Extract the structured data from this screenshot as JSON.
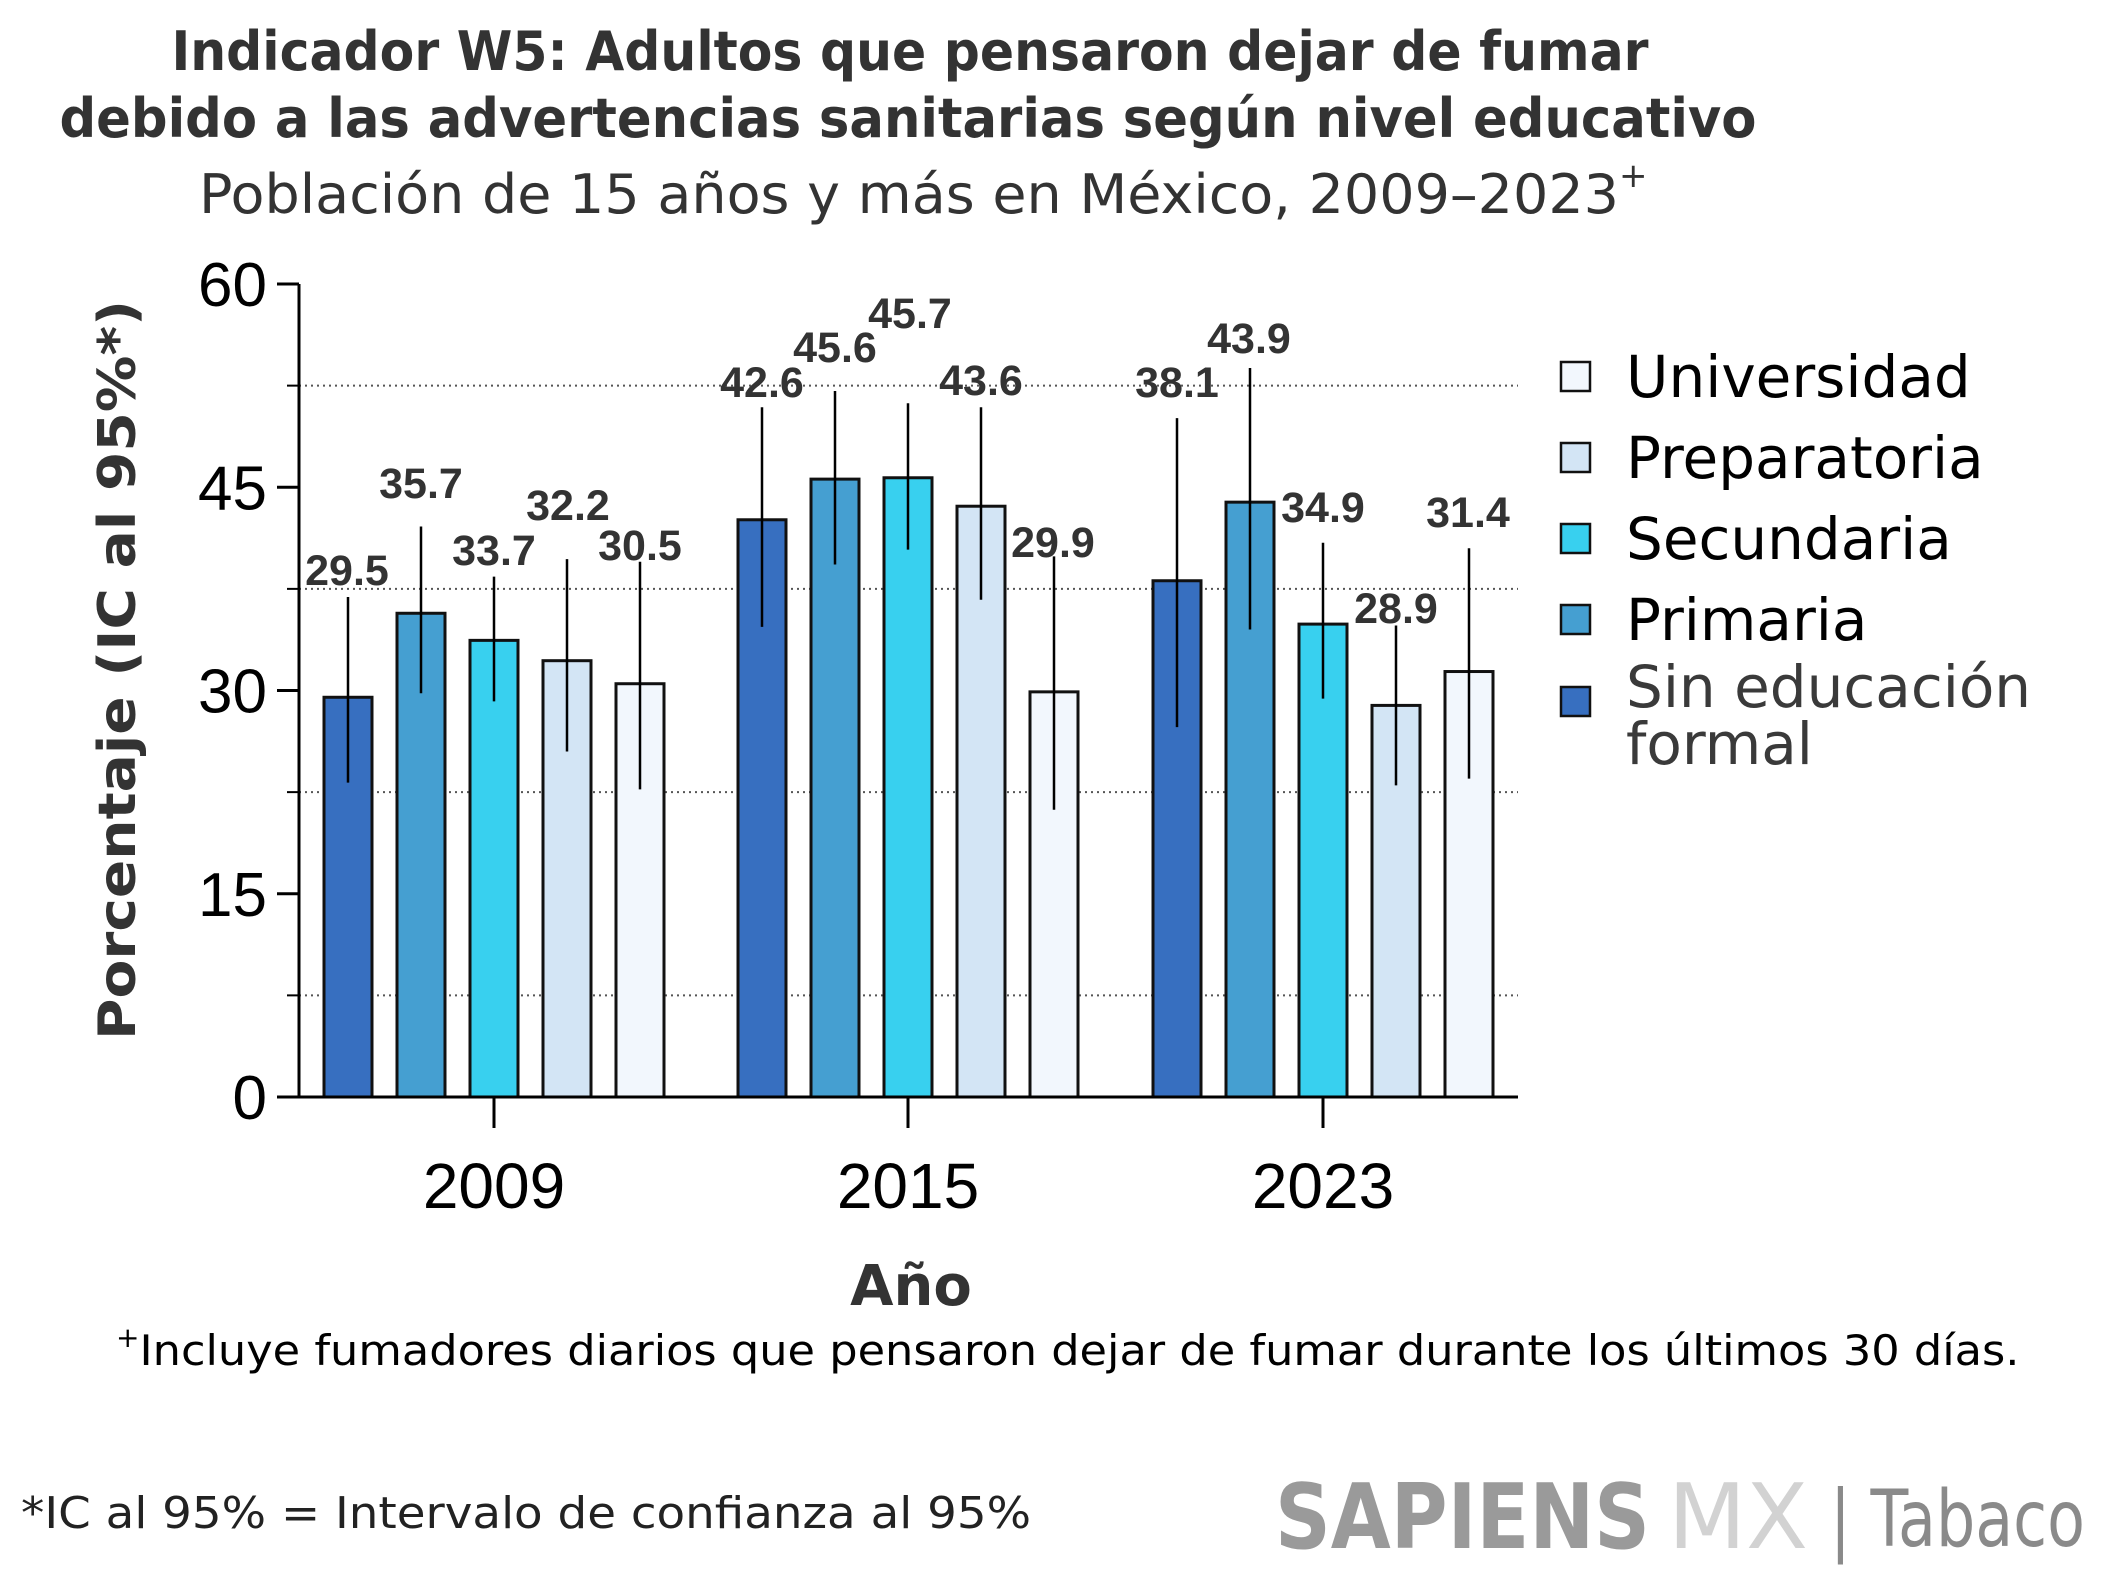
{
  "title_line1": "Indicador W5: Adultos que pensaron dejar de fumar",
  "title_line2": "debido a las advertencias sanitarias según nivel educativo",
  "subtitle": "Población de 15 años y más en México, 2009–2023",
  "subtitle_sup": "+",
  "footnote_sup": "+",
  "footnote": "Incluye fumadores diarios que pensaron dejar de fumar durante los últimos 30 días.",
  "ci_note": "*IC al 95% = Intervalo de confianza al 95%",
  "logo": {
    "part1": "SAPIENS",
    "part2": "MX",
    "part3": "| Tabaco"
  },
  "chart_data": {
    "type": "bar",
    "title": "Indicador W5: Adultos que pensaron dejar de fumar debido a las advertencias sanitarias según nivel educativo",
    "subtitle": "Población de 15 años y más en México, 2009–2023+",
    "xlabel": "Año",
    "ylabel": "Porcentaje (IC al 95%*)",
    "ylim": [
      0,
      60
    ],
    "yticks": [
      0,
      15,
      30,
      45,
      60
    ],
    "ytick_labels": [
      "0",
      "15",
      "30",
      "45",
      "60"
    ],
    "minor_gridlines": [
      7.5,
      22.5,
      37.5,
      52.5
    ],
    "grid": "dotted minor horizontal",
    "categories": [
      "2009",
      "2015",
      "2023"
    ],
    "legend_position": "right",
    "legend_order": [
      "Universidad",
      "Preparatoria",
      "Secundaria",
      "Primaria",
      "Sin educación formal"
    ],
    "series": [
      {
        "name": "Sin educación formal",
        "color": "#376fc0",
        "values": [
          29.5,
          42.6,
          38.1
        ],
        "ci_low": [
          23.2,
          34.7,
          27.3
        ],
        "ci_high": [
          36.9,
          50.9,
          50.1
        ]
      },
      {
        "name": "Primaria",
        "color": "#459fd1",
        "values": [
          35.7,
          45.6,
          43.9
        ],
        "ci_low": [
          29.8,
          39.3,
          34.5
        ],
        "ci_high": [
          42.1,
          52.1,
          53.8
        ]
      },
      {
        "name": "Secundaria",
        "color": "#38d0ef",
        "values": [
          33.7,
          45.7,
          34.9
        ],
        "ci_low": [
          29.2,
          40.4,
          29.4
        ],
        "ci_high": [
          38.4,
          51.2,
          40.9
        ]
      },
      {
        "name": "Preparatoria",
        "color": "#d3e5f5",
        "values": [
          32.2,
          43.6,
          28.9
        ],
        "ci_low": [
          25.5,
          36.7,
          23.0
        ],
        "ci_high": [
          39.7,
          50.9,
          34.8
        ]
      },
      {
        "name": "Universidad",
        "color": "#f2f7fd",
        "values": [
          30.5,
          29.9,
          31.4
        ],
        "ci_low": [
          22.7,
          21.2,
          23.5
        ],
        "ci_high": [
          39.5,
          39.9,
          40.5
        ]
      }
    ]
  }
}
